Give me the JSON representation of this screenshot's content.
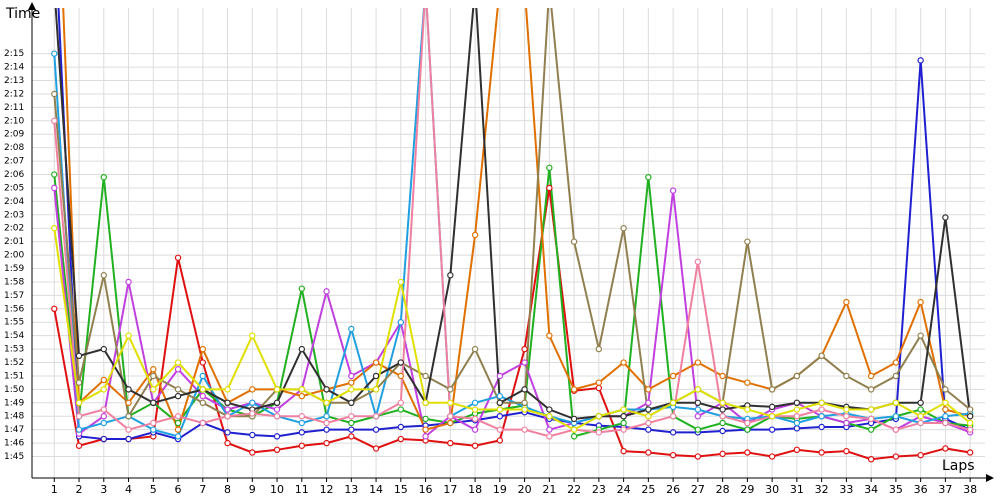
{
  "chart_data": {
    "type": "line",
    "y_label": "Time",
    "x_label": "Laps",
    "grid": true,
    "x": [
      1,
      2,
      3,
      4,
      5,
      6,
      7,
      8,
      9,
      10,
      11,
      12,
      13,
      14,
      15,
      16,
      17,
      18,
      19,
      20,
      21,
      22,
      23,
      24,
      25,
      26,
      27,
      28,
      29,
      30,
      31,
      32,
      33,
      34,
      35,
      36,
      37,
      38
    ],
    "xlim": [
      0.1,
      38.6
    ],
    "xticks": [
      1,
      2,
      3,
      4,
      5,
      6,
      7,
      8,
      9,
      10,
      11,
      12,
      13,
      14,
      15,
      16,
      17,
      18,
      19,
      20,
      21,
      22,
      23,
      24,
      25,
      26,
      27,
      28,
      29,
      30,
      31,
      32,
      33,
      34,
      35,
      36,
      37,
      38
    ],
    "ylim": [
      103.4,
      138.4
    ],
    "yticks": [
      {
        "value": 105,
        "label": "1:45"
      },
      {
        "value": 106,
        "label": "1:46"
      },
      {
        "value": 107,
        "label": "1:47"
      },
      {
        "value": 108,
        "label": "1:48"
      },
      {
        "value": 109,
        "label": "1:49"
      },
      {
        "value": 110,
        "label": "1:50"
      },
      {
        "value": 111,
        "label": "1:51"
      },
      {
        "value": 112,
        "label": "1:52"
      },
      {
        "value": 113,
        "label": "1:53"
      },
      {
        "value": 114,
        "label": "1:54"
      },
      {
        "value": 115,
        "label": "1:55"
      },
      {
        "value": 116,
        "label": "1:56"
      },
      {
        "value": 117,
        "label": "1:57"
      },
      {
        "value": 118,
        "label": "1:58"
      },
      {
        "value": 119,
        "label": "1:59"
      },
      {
        "value": 120,
        "label": "2:00"
      },
      {
        "value": 121,
        "label": "2:01"
      },
      {
        "value": 122,
        "label": "2:02"
      },
      {
        "value": 123,
        "label": "2:03"
      },
      {
        "value": 124,
        "label": "2:04"
      },
      {
        "value": 125,
        "label": "2:05"
      },
      {
        "value": 126,
        "label": "2:06"
      },
      {
        "value": 127,
        "label": "2:07"
      },
      {
        "value": 128,
        "label": "2:08"
      },
      {
        "value": 129,
        "label": "2:09"
      },
      {
        "value": 130,
        "label": "2:10"
      },
      {
        "value": 131,
        "label": "2:11"
      },
      {
        "value": 132,
        "label": "2:12"
      },
      {
        "value": 133,
        "label": "2:13"
      },
      {
        "value": 134,
        "label": "2:14"
      },
      {
        "value": 135,
        "label": "2:15"
      }
    ],
    "series": [
      {
        "color": "#e01010",
        "values": [
          116,
          105.8,
          106.3,
          106.3,
          106.5,
          119.8,
          112,
          106,
          105.3,
          105.5,
          105.8,
          106,
          106.5,
          105.6,
          106.3,
          106.2,
          106,
          105.8,
          106.2,
          113,
          125,
          109.9,
          110.1,
          105.4,
          105.3,
          105.1,
          105,
          105.2,
          105.3,
          105,
          105.5,
          105.3,
          105.4,
          104.8,
          105,
          105.1,
          105.6,
          105.3
        ]
      },
      {
        "color": "#2020d0",
        "values": [
          145,
          106.5,
          106.3,
          106.3,
          106.8,
          106.3,
          107.5,
          106.8,
          106.6,
          106.5,
          106.8,
          107,
          107,
          107,
          107.2,
          107.3,
          107.5,
          107.7,
          108,
          108.3,
          107.8,
          107.5,
          107.3,
          107.2,
          107,
          106.8,
          106.8,
          106.9,
          107,
          107,
          107.1,
          107.2,
          107.2,
          107.5,
          107.8,
          134.5,
          107.8,
          107
        ]
      },
      {
        "color": "#20b020",
        "values": [
          126,
          108,
          125.8,
          108,
          109,
          107.5,
          110,
          108.5,
          108,
          109,
          117.5,
          108,
          107.5,
          108,
          108.5,
          107.8,
          107.5,
          108.2,
          108.5,
          108.8,
          126.5,
          106.5,
          107,
          107.5,
          125.8,
          108,
          107,
          107.5,
          107,
          108,
          107.8,
          108,
          107.5,
          107,
          108,
          108.5,
          107.5,
          107.3
        ]
      },
      {
        "color": "#c040e0",
        "values": [
          125,
          106.7,
          108,
          118,
          109,
          111.5,
          109.5,
          108.5,
          109,
          108.5,
          110,
          117.3,
          111,
          112,
          115,
          106.5,
          108,
          107,
          111,
          112,
          107,
          107.5,
          108,
          108,
          109,
          124.8,
          108,
          109,
          107.5,
          108.5,
          109,
          108,
          107.5,
          107.8,
          107,
          108,
          107.5,
          106.8
        ]
      },
      {
        "color": "#e07000",
        "values": [
          155,
          109,
          110.7,
          109,
          111.5,
          107,
          113,
          109,
          110,
          110,
          109.5,
          110,
          110.5,
          112,
          111,
          107,
          107.5,
          121.5,
          140,
          140,
          114,
          110,
          110.5,
          112,
          110,
          111,
          112,
          111,
          110.5,
          110,
          111,
          112.5,
          116.5,
          111,
          112,
          116.5,
          108.5,
          108
        ]
      },
      {
        "color": "#20a0e0",
        "values": [
          135,
          107,
          107.5,
          108,
          107,
          106.5,
          111,
          108,
          109,
          108,
          107.5,
          108,
          114.5,
          108,
          115,
          140,
          108,
          109,
          109.5,
          108.7,
          108,
          107.5,
          108,
          108.5,
          108.5,
          108.7,
          108.5,
          108,
          107.8,
          108,
          107.5,
          108,
          108.2,
          107.8,
          108,
          107.5,
          108,
          108.2
        ]
      },
      {
        "color": "#908050",
        "values": [
          132,
          110.5,
          118.5,
          108,
          111,
          110,
          109,
          108,
          108,
          110,
          110,
          109,
          109,
          110,
          112,
          111,
          110,
          113,
          109,
          109,
          140,
          121,
          113,
          122,
          108,
          109,
          110,
          109,
          121,
          110,
          111,
          112.5,
          111,
          110,
          111,
          114,
          110,
          108.5
        ]
      },
      {
        "color": "#303030",
        "values": [
          140,
          112.5,
          113,
          110,
          109,
          109.5,
          110,
          109,
          108.5,
          109,
          113,
          110,
          109,
          111,
          112,
          109,
          118.5,
          140,
          109,
          110,
          108.5,
          107.8,
          108,
          108,
          108.5,
          109,
          109,
          108.5,
          108.8,
          108.7,
          109,
          109,
          108.7,
          108.5,
          109,
          109,
          122.8,
          108
        ]
      },
      {
        "color": "#f080a0",
        "values": [
          130,
          108,
          108.5,
          107,
          107.5,
          108,
          107.5,
          108,
          108.2,
          108,
          108,
          107.5,
          108,
          108,
          109,
          140,
          108,
          107.8,
          107,
          107,
          106.5,
          107,
          106.8,
          107,
          107.5,
          108,
          119.5,
          108,
          107.5,
          108,
          108,
          108.5,
          108,
          107.8,
          107,
          107.5,
          107.5,
          107
        ]
      },
      {
        "color": "#e0e000",
        "values": [
          122,
          109,
          110,
          114,
          110,
          112,
          110,
          110,
          114,
          110,
          110,
          109,
          110,
          110,
          118,
          109,
          109,
          108.5,
          108.5,
          108.5,
          108,
          107,
          108,
          108.5,
          108,
          109,
          110,
          109,
          108.5,
          108,
          108.5,
          109,
          108.5,
          108.5,
          109,
          108,
          109,
          107.5
        ]
      }
    ]
  }
}
